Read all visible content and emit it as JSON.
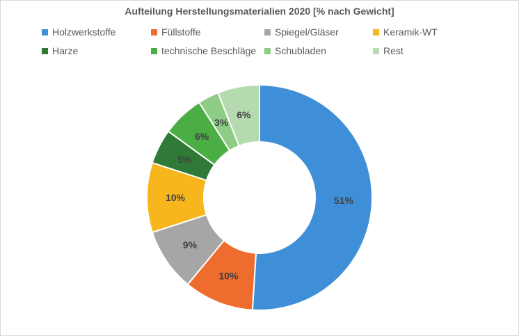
{
  "chart_data": {
    "type": "pie",
    "variant": "doughnut",
    "title": "Aufteilung Herstellungsmaterialien 2020 [% nach Gewicht]",
    "legend_position": "top",
    "slices": [
      {
        "label": "Holzwerkstoffe",
        "value": 51,
        "display": "51%",
        "color": "#3f8fd8"
      },
      {
        "label": "Füllstoffe",
        "value": 10,
        "display": "10%",
        "color": "#ee6c2d"
      },
      {
        "label": "Spiegel/Gläser",
        "value": 9,
        "display": "9%",
        "color": "#a6a6a6"
      },
      {
        "label": "Keramik-WT",
        "value": 10,
        "display": "10%",
        "color": "#f7b61c"
      },
      {
        "label": "Harze",
        "value": 5,
        "display": "5%",
        "color": "#2f7a36"
      },
      {
        "label": "technische Beschläge",
        "value": 6,
        "display": "6%",
        "color": "#4aae45"
      },
      {
        "label": "Schubladen",
        "value": 3,
        "display": "3%",
        "color": "#8ccc84"
      },
      {
        "label": "Rest",
        "value": 6,
        "display": "6%",
        "color": "#b5dab0"
      }
    ]
  }
}
